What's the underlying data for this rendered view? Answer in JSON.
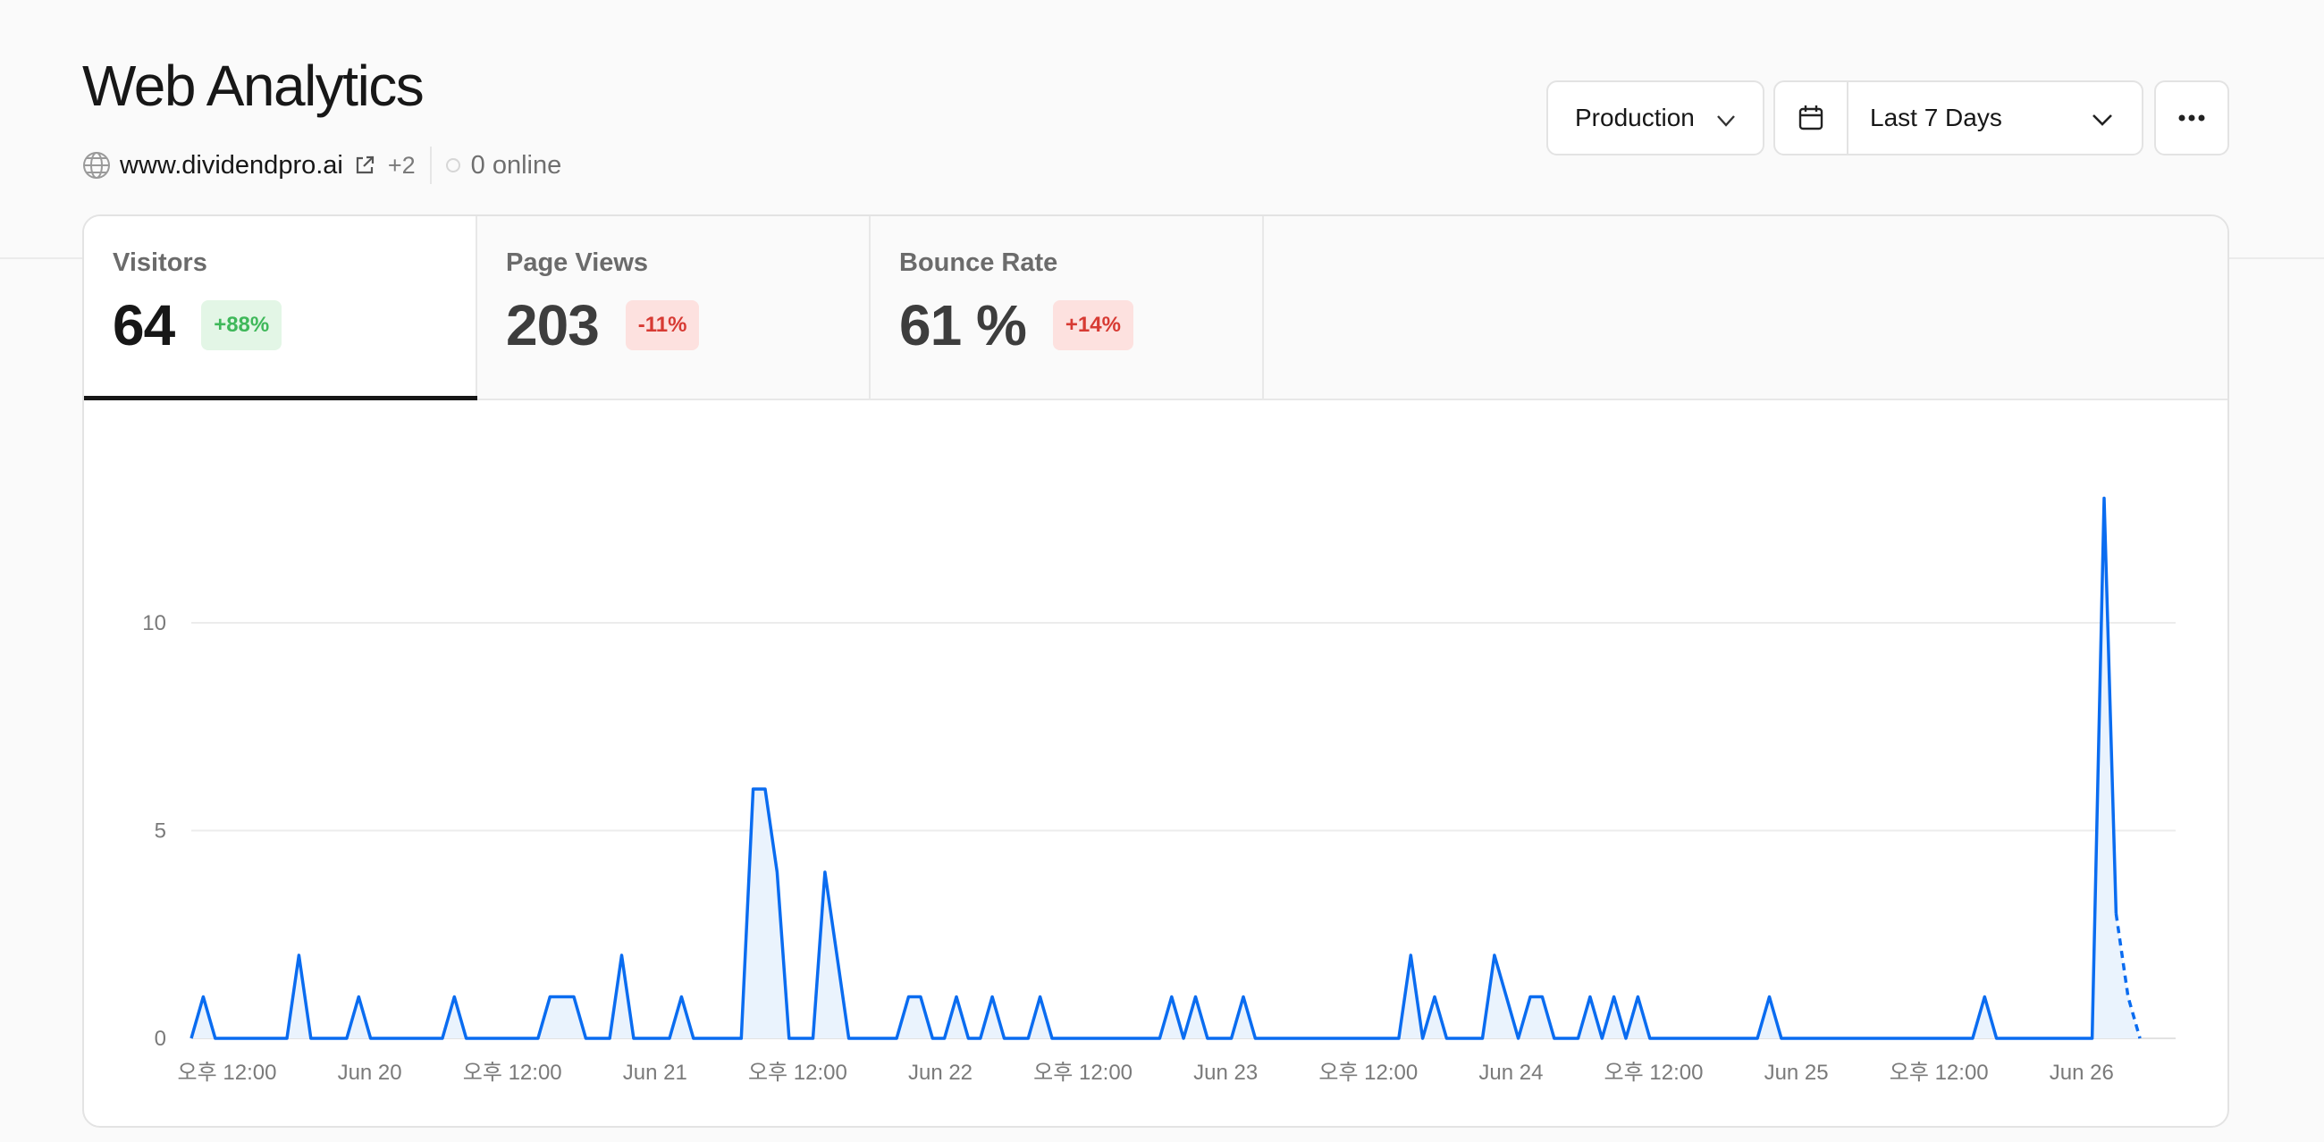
{
  "header": {
    "title": "Web Analytics",
    "domain": "www.dividendpro.ai",
    "extra_domains": "+2",
    "online": "0 online"
  },
  "toolbar": {
    "environment": "Production",
    "date_range": "Last 7 Days",
    "icons": [
      "globe-icon",
      "external-link-icon",
      "chevron-down-icon",
      "calendar-icon",
      "more-icon"
    ]
  },
  "tabs": [
    {
      "label": "Visitors",
      "value": "64",
      "change": "+88%",
      "trend": "up",
      "active": true
    },
    {
      "label": "Page Views",
      "value": "203",
      "change": "-11%",
      "trend": "down",
      "active": false
    },
    {
      "label": "Bounce Rate",
      "value": "61 %",
      "change": "+14%",
      "trend": "down",
      "active": false
    }
  ],
  "colors": {
    "line": "#0a6cf0",
    "area": "#eaf3fd",
    "positive": "#3fb85a",
    "negative": "#d73a33"
  },
  "chart_data": {
    "type": "area",
    "series": [
      {
        "values": [
          0,
          1,
          0,
          0,
          0,
          0,
          0,
          0,
          0,
          2,
          0,
          0,
          0,
          0,
          1,
          0,
          0,
          0,
          0,
          0,
          0,
          0,
          1,
          0,
          0,
          0,
          0,
          0,
          0,
          0,
          1,
          1,
          1,
          0,
          0,
          0,
          2,
          0,
          0,
          0,
          0,
          1,
          0,
          0,
          0,
          0,
          0,
          6,
          6,
          4,
          0,
          0,
          0,
          4,
          2,
          0,
          0,
          0,
          0,
          0,
          1,
          1,
          0,
          0,
          1,
          0,
          0,
          1,
          0,
          0,
          0,
          1,
          0,
          0,
          0,
          0,
          0,
          0,
          0,
          0,
          0,
          0,
          1,
          0,
          1,
          0,
          0,
          0,
          1,
          0,
          0,
          0,
          0,
          0,
          0,
          0,
          0,
          0,
          0,
          0,
          0,
          0,
          2,
          0,
          1,
          0,
          0,
          0,
          0,
          2,
          1,
          0,
          1,
          1,
          0,
          0,
          0,
          1,
          0,
          1,
          0,
          1,
          0,
          0,
          0,
          0,
          0,
          0,
          0,
          0,
          0,
          0,
          1,
          0,
          0,
          0,
          0,
          0,
          0,
          0,
          0,
          0,
          0,
          0,
          0,
          0,
          0,
          0,
          0,
          0,
          1,
          0,
          0,
          0,
          0,
          0,
          0,
          0,
          0,
          0,
          13,
          3,
          1,
          0
        ]
      }
    ],
    "partial_last_points": 2,
    "x_tick_labels": [
      "오후 12:00",
      "Jun 20",
      "오후 12:00",
      "Jun 21",
      "오후 12:00",
      "Jun 22",
      "오후 12:00",
      "Jun 23",
      "오후 12:00",
      "Jun 24",
      "오후 12:00",
      "Jun 25",
      "오후 12:00",
      "Jun 26"
    ],
    "y_ticks": [
      0,
      5,
      10
    ],
    "ylim": [
      0,
      13
    ],
    "grid": true,
    "legend": "none"
  }
}
